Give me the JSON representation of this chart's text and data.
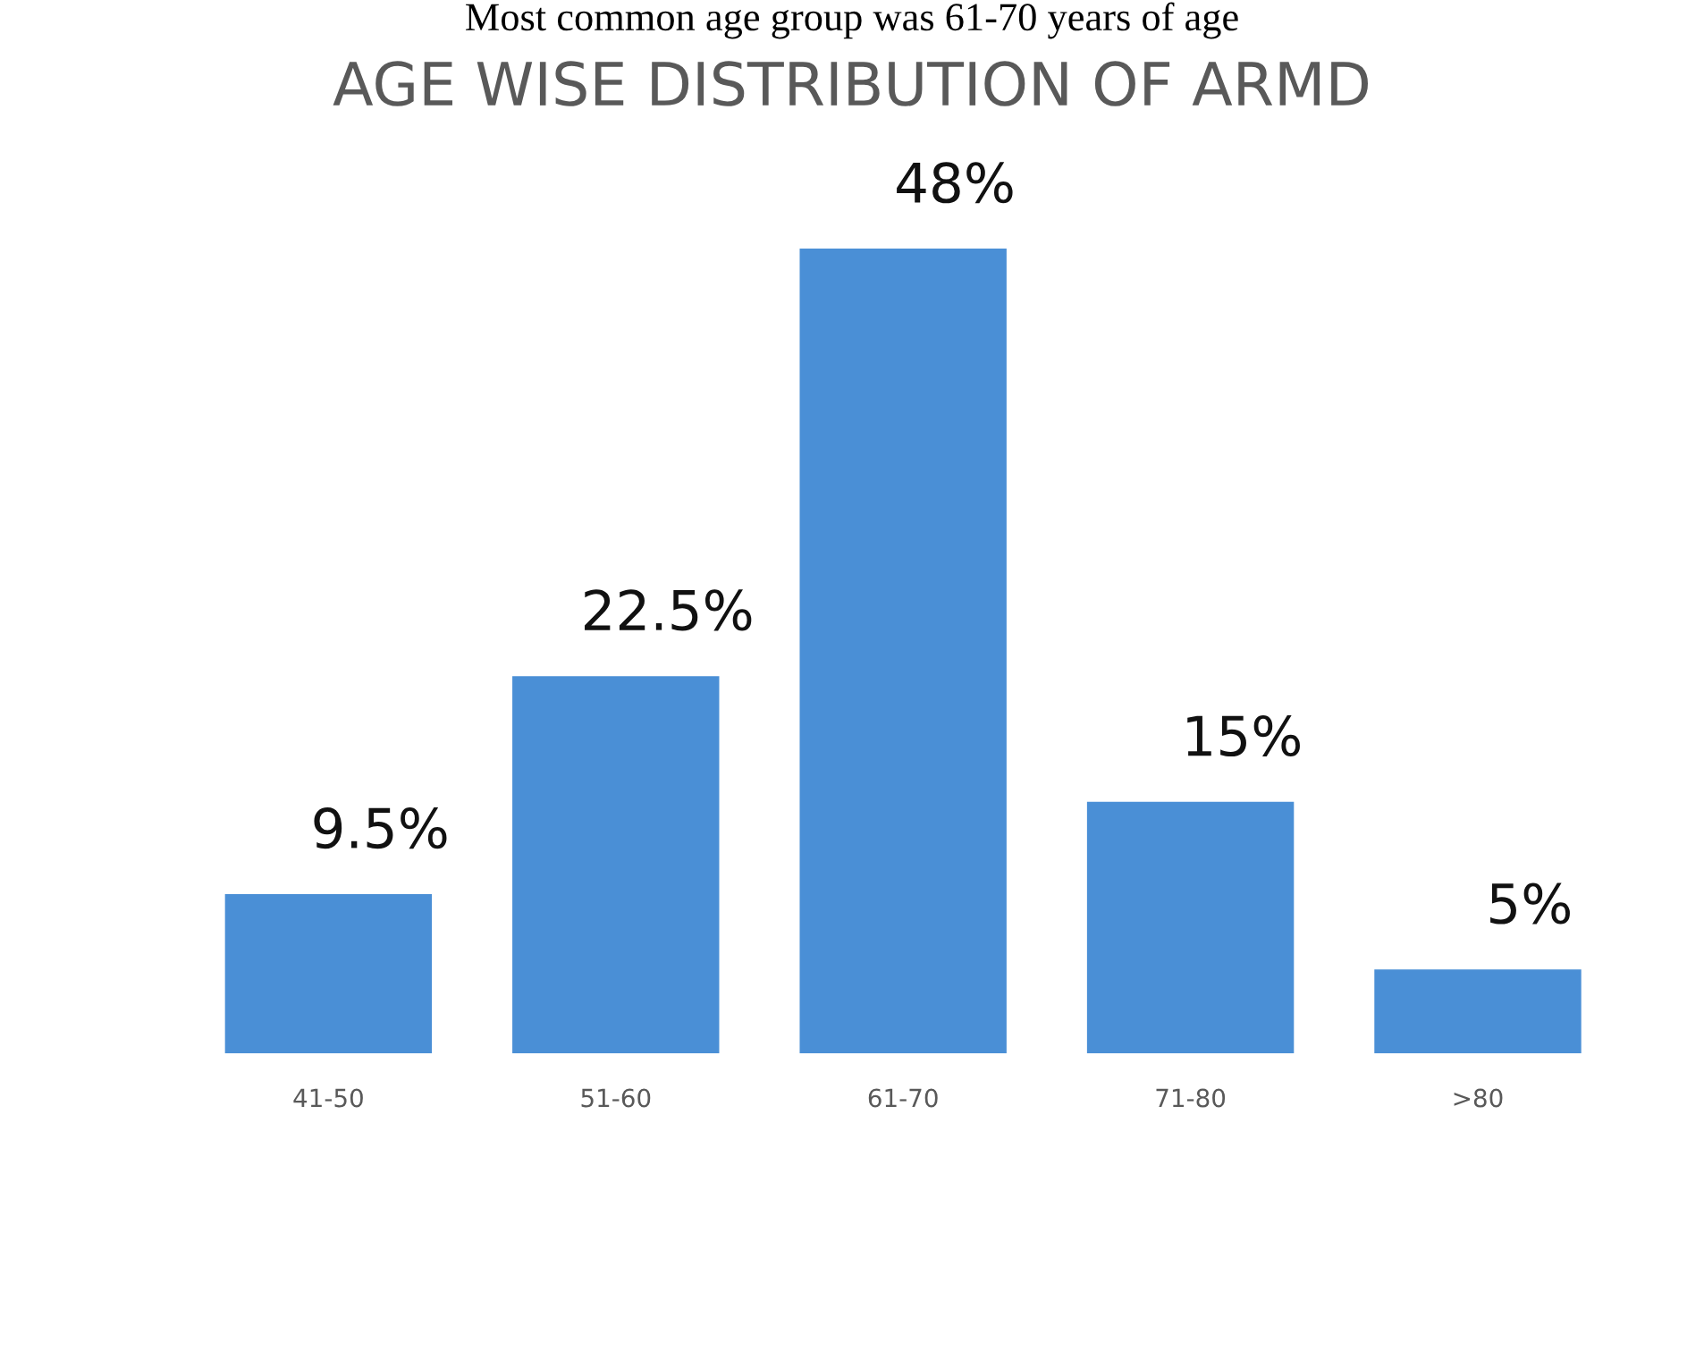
{
  "chart_data": {
    "type": "bar",
    "title": "AGE WISE DISTRIBUTION OF ARMD",
    "annotations": [
      "Most common age group was 61-70 years of age"
    ],
    "categories": [
      "41-50",
      "51-60",
      "61-70",
      "71-80",
      ">80"
    ],
    "values": [
      9.5,
      22.5,
      48,
      15,
      5
    ],
    "value_labels": [
      "9.5%",
      "22.5%",
      "48%",
      "15%",
      "5%"
    ],
    "color": "#4a8fd6",
    "grid": false,
    "legend": false
  }
}
